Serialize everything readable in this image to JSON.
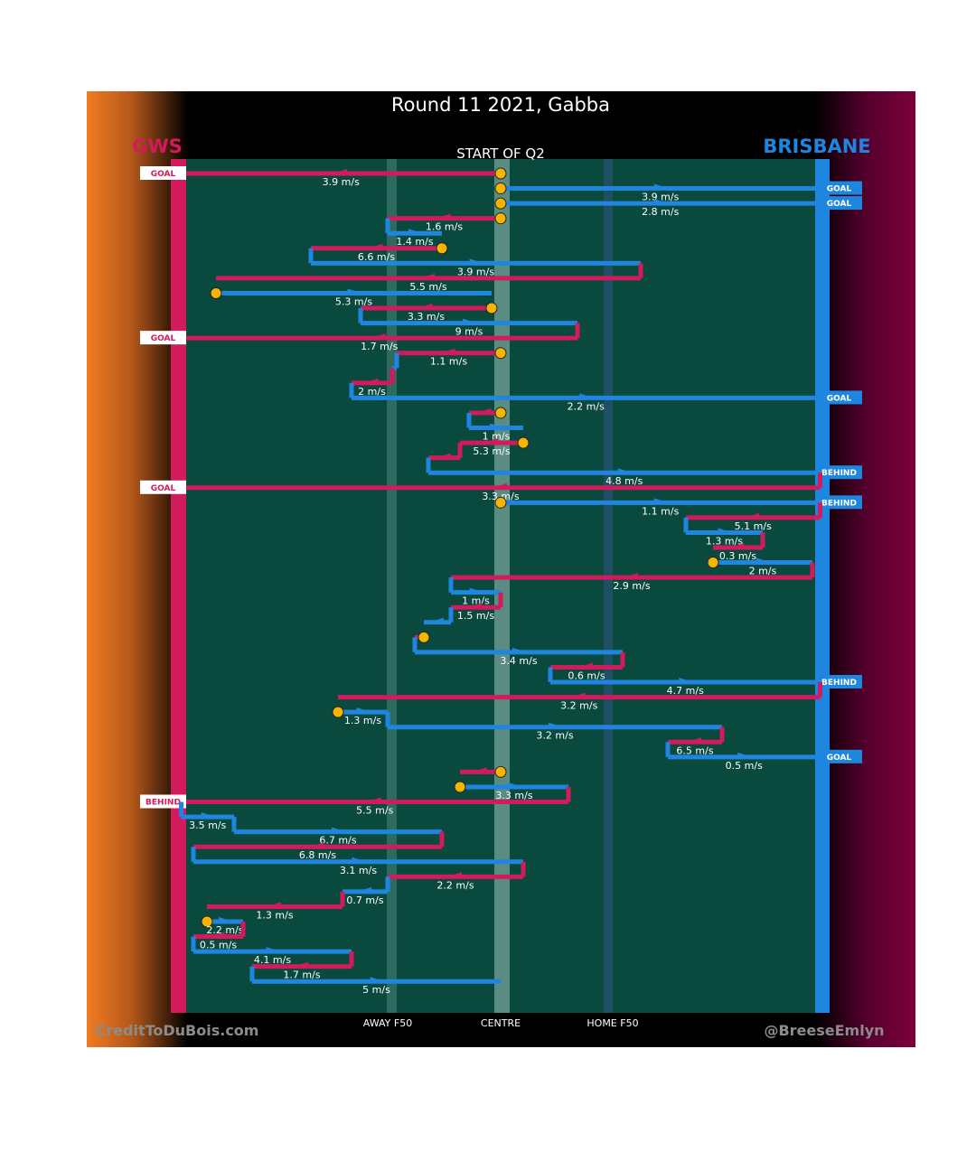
{
  "header": {
    "title": "Round 11 2021, Gabba",
    "subtitle": "START OF Q2",
    "team_left": "GWS",
    "team_right": "BRISBANE"
  },
  "footer": {
    "credit_left": "CreditToDuBois.com",
    "credit_right": "@BreeseEmlyn"
  },
  "colors": {
    "gws": "#d21b5c",
    "brisbane": "#1f86e0",
    "field": "#0a4a3e",
    "possession_start": "#f7b500",
    "left_gradient": "#f07c22",
    "right_gradient": "#7a0038"
  },
  "chart_data": {
    "type": "line",
    "title": "Round 11 2021, Gabba",
    "subtitle": "START OF Q2",
    "x_ticks": [
      "AWAY F50",
      "CENTRE",
      "HOME F50"
    ],
    "series": [
      {
        "name": "GWS",
        "color": "#d21b5c"
      },
      {
        "name": "BRISBANE",
        "color": "#1f86e0"
      }
    ],
    "chains": [
      {
        "team": "gws",
        "from": 0.0,
        "to": -0.707,
        "speed": "3.9 m/s",
        "start_marker": true,
        "outcome": "GOAL"
      },
      {
        "team": "bri",
        "from": 0.0,
        "to": 0.707,
        "speed": "3.9 m/s",
        "start_marker": true,
        "outcome": "GOAL"
      },
      {
        "team": "bri",
        "from": 0.0,
        "to": 0.707,
        "speed": "2.8 m/s",
        "start_marker": true,
        "outcome": "GOAL"
      },
      {
        "team": "gws",
        "from": 0.0,
        "to": -0.25,
        "speed": "1.6 m/s",
        "start_marker": true
      },
      {
        "team": "bri",
        "from": -0.25,
        "to": -0.13,
        "speed": "1.4 m/s"
      },
      {
        "team": "gws",
        "from": -0.13,
        "to": -0.42,
        "speed": "6.6 m/s",
        "start_marker": true
      },
      {
        "team": "bri",
        "from": -0.42,
        "to": 0.31,
        "speed": "3.9 m/s"
      },
      {
        "team": "gws",
        "from": 0.31,
        "to": -0.63,
        "speed": "5.5 m/s"
      },
      {
        "team": "bri",
        "from": -0.63,
        "to": -0.02,
        "speed": "5.3 m/s",
        "start_marker": true
      },
      {
        "team": "gws",
        "from": -0.02,
        "to": -0.31,
        "speed": "3.3 m/s",
        "start_marker": true
      },
      {
        "team": "bri",
        "from": -0.31,
        "to": 0.17,
        "speed": "9 m/s"
      },
      {
        "team": "gws",
        "from": 0.17,
        "to": -0.707,
        "speed": "1.7 m/s",
        "outcome": "GOAL"
      },
      {
        "team": "gws",
        "from": 0.0,
        "to": -0.23,
        "speed": "1.1 m/s",
        "start_marker": true
      },
      {
        "team": "bri",
        "from": -0.23,
        "to": -0.24,
        "speed": ""
      },
      {
        "team": "gws",
        "from": -0.24,
        "to": -0.33,
        "speed": "2 m/s"
      },
      {
        "team": "bri",
        "from": -0.33,
        "to": 0.707,
        "speed": "2.2 m/s",
        "outcome": "GOAL"
      },
      {
        "team": "gws",
        "from": 0.0,
        "to": -0.07,
        "speed": "",
        "start_marker": true
      },
      {
        "team": "bri",
        "from": -0.07,
        "to": 0.05,
        "speed": "1 m/s"
      },
      {
        "team": "gws",
        "from": 0.05,
        "to": -0.09,
        "speed": "5.3 m/s",
        "start_marker": true
      },
      {
        "team": "gws",
        "from": -0.09,
        "to": -0.16,
        "speed": ""
      },
      {
        "team": "bri",
        "from": -0.16,
        "to": 0.707,
        "speed": "4.8 m/s",
        "outcome": "BEHIND"
      },
      {
        "team": "gws",
        "from": 0.707,
        "to": -0.707,
        "speed": "3.3 m/s",
        "outcome": "GOAL"
      },
      {
        "team": "bri",
        "from": 0.0,
        "to": 0.707,
        "speed": "1.1 m/s",
        "start_marker": true,
        "outcome": "BEHIND"
      },
      {
        "team": "gws",
        "from": 0.707,
        "to": 0.41,
        "speed": "5.1 m/s"
      },
      {
        "team": "bri",
        "from": 0.41,
        "to": 0.58,
        "speed": "1.3 m/s"
      },
      {
        "team": "gws",
        "from": 0.58,
        "to": 0.47,
        "speed": "0.3 m/s"
      },
      {
        "team": "bri",
        "from": 0.47,
        "to": 0.69,
        "speed": "2 m/s",
        "start_marker": true
      },
      {
        "team": "gws",
        "from": 0.69,
        "to": -0.11,
        "speed": "2.9 m/s"
      },
      {
        "team": "bri",
        "from": -0.11,
        "to": 0.0,
        "speed": "1 m/s"
      },
      {
        "team": "gws",
        "from": 0.0,
        "to": -0.11,
        "speed": "1.5 m/s"
      },
      {
        "team": "bri",
        "from": -0.11,
        "to": -0.17,
        "speed": ""
      },
      {
        "team": "gws",
        "from": -0.17,
        "to": -0.19,
        "speed": "",
        "start_marker": true
      },
      {
        "team": "bri",
        "from": -0.19,
        "to": 0.27,
        "speed": "3.4 m/s"
      },
      {
        "team": "gws",
        "from": 0.27,
        "to": 0.11,
        "speed": "0.6 m/s"
      },
      {
        "team": "bri",
        "from": 0.11,
        "to": 0.707,
        "speed": "4.7 m/s",
        "outcome": "BEHIND"
      },
      {
        "team": "gws",
        "from": 0.707,
        "to": -0.36,
        "speed": "3.2 m/s"
      },
      {
        "team": "bri",
        "from": -0.36,
        "to": -0.25,
        "speed": "1.3 m/s",
        "start_marker": true
      },
      {
        "team": "bri",
        "from": -0.25,
        "to": 0.49,
        "speed": "3.2 m/s"
      },
      {
        "team": "gws",
        "from": 0.49,
        "to": 0.37,
        "speed": "6.5 m/s"
      },
      {
        "team": "bri",
        "from": 0.37,
        "to": 0.707,
        "speed": "0.5 m/s",
        "outcome": "GOAL"
      },
      {
        "team": "gws",
        "from": 0.0,
        "to": -0.09,
        "speed": "",
        "start_marker": true
      },
      {
        "team": "bri",
        "from": -0.09,
        "to": 0.15,
        "speed": "3.3 m/s",
        "start_marker": true
      },
      {
        "team": "gws",
        "from": 0.15,
        "to": -0.707,
        "speed": "5.5 m/s",
        "outcome": "BEHIND"
      },
      {
        "team": "bri",
        "from": -0.707,
        "to": -0.59,
        "speed": "3.5 m/s"
      },
      {
        "team": "bri",
        "from": -0.59,
        "to": -0.13,
        "speed": "6.7 m/s"
      },
      {
        "team": "gws",
        "from": -0.13,
        "to": -0.68,
        "speed": "6.8 m/s"
      },
      {
        "team": "bri",
        "from": -0.68,
        "to": 0.05,
        "speed": "3.1 m/s"
      },
      {
        "team": "gws",
        "from": 0.05,
        "to": -0.25,
        "speed": "2.2 m/s"
      },
      {
        "team": "bri",
        "from": -0.25,
        "to": -0.35,
        "speed": "0.7 m/s"
      },
      {
        "team": "gws",
        "from": -0.35,
        "to": -0.65,
        "speed": "1.3 m/s"
      },
      {
        "team": "bri",
        "from": -0.65,
        "to": -0.57,
        "speed": "2.2 m/s",
        "start_marker": true
      },
      {
        "team": "gws",
        "from": -0.57,
        "to": -0.68,
        "speed": "0.5 m/s"
      },
      {
        "team": "bri",
        "from": -0.68,
        "to": -0.33,
        "speed": "4.1 m/s"
      },
      {
        "team": "gws",
        "from": -0.33,
        "to": -0.55,
        "speed": "1.7 m/s"
      },
      {
        "team": "bri",
        "from": -0.55,
        "to": 0.0,
        "speed": "5 m/s"
      }
    ]
  }
}
